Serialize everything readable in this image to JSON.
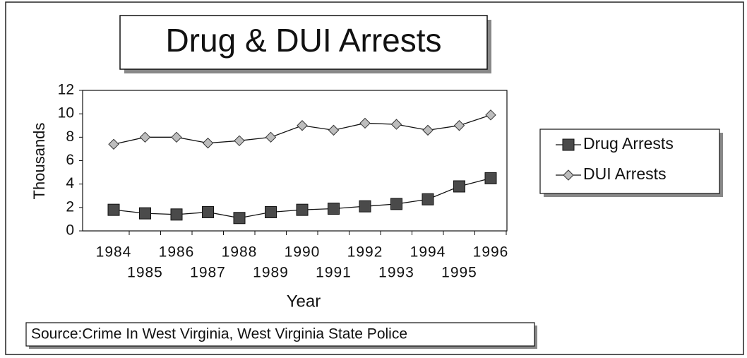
{
  "chart_data": {
    "type": "line",
    "title": "Drug & DUI Arrests",
    "x_label": "Year",
    "y_label": "Thousands",
    "source": "Source:Crime In West Virginia, West Virginia State Police",
    "categories": [
      "1984",
      "1985",
      "1986",
      "1987",
      "1988",
      "1989",
      "1990",
      "1991",
      "1992",
      "1993",
      "1994",
      "1995",
      "1996"
    ],
    "series": [
      {
        "name": "Drug Arrests",
        "color": "#4a4a4a",
        "marker": "square",
        "values": [
          1.8,
          1.5,
          1.4,
          1.6,
          1.1,
          1.6,
          1.8,
          1.9,
          2.1,
          2.3,
          2.7,
          3.8,
          4.5
        ]
      },
      {
        "name": "DUI Arrests",
        "color": "#bdbdbd",
        "marker": "diamond",
        "values": [
          7.4,
          8.0,
          8.0,
          7.5,
          7.7,
          8.0,
          9.0,
          8.6,
          9.2,
          9.1,
          8.6,
          9.0,
          9.9
        ]
      }
    ],
    "ylim": [
      0,
      12
    ],
    "yticks": [
      0,
      2,
      4,
      6,
      8,
      10,
      12
    ],
    "legend": "right"
  }
}
